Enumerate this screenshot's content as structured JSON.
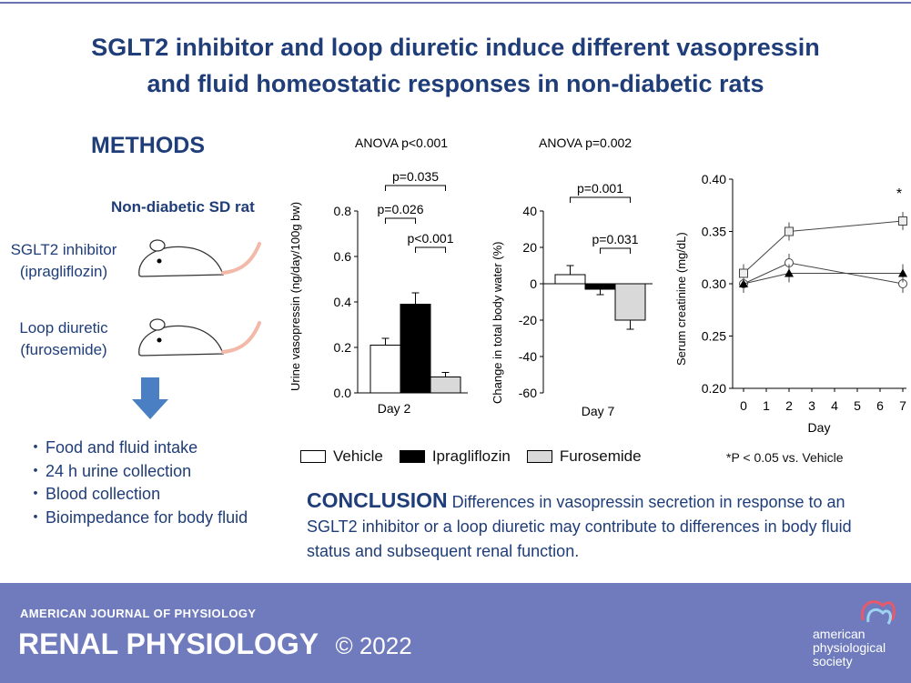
{
  "title_line1": "SGLT2 inhibitor and loop diuretic induce different vasopressin",
  "title_line2": "and fluid homeostatic responses in non-diabetic rats",
  "methods": {
    "heading": "METHODS",
    "rat_label": "Non-diabetic SD rat",
    "drug1_line1": "SGLT2 inhibitor",
    "drug1_line2": "(ipragliflozin)",
    "drug2_line1": "Loop diuretic",
    "drug2_line2": "(furosemide)",
    "bullets": [
      "Food and fluid intake",
      "24 h urine collection",
      "Blood collection",
      "Bioimpedance for body fluid"
    ]
  },
  "legend": {
    "vehicle": "Vehicle",
    "ipragliflozin": "Ipragliflozin",
    "furosemide": "Furosemide",
    "note": "*P < 0.05 vs. Vehicle"
  },
  "conclusion": {
    "heading": "CONCLUSION",
    "text": "Differences in vasopressin secretion in response to an SGLT2 inhibitor or a loop diuretic may contribute to differences in body fluid status and subsequent renal function."
  },
  "footer": {
    "journal": "AMERICAN JOURNAL OF PHYSIOLOGY",
    "name": "RENAL PHYSIOLOGY",
    "copyright": "© 2022",
    "society_line1": "american",
    "society_line2": "physiological",
    "society_line3": "society"
  },
  "colors": {
    "navy": "#1f3d78",
    "footer": "#6f7bbd",
    "gray_bar": "#d9d9d9"
  },
  "chart_data": [
    {
      "type": "bar",
      "anova": "ANOVA  p<0.001",
      "ylabel": "Urine vasopressin (ng/day/100g bw)",
      "xlabel": "Day 2",
      "ylim": [
        0,
        0.8
      ],
      "yticks": [
        "0.0",
        "0.2",
        "0.4",
        "0.6",
        "0.8"
      ],
      "series": [
        {
          "name": "Vehicle",
          "value": 0.21,
          "error": 0.03
        },
        {
          "name": "Ipragliflozin",
          "value": 0.39,
          "error": 0.05
        },
        {
          "name": "Furosemide",
          "value": 0.07,
          "error": 0.02
        }
      ],
      "brackets": [
        {
          "label": "p=0.035",
          "from": 0,
          "to": 2
        },
        {
          "label": "p=0.026",
          "from": 0,
          "to": 1
        },
        {
          "label": "p<0.001",
          "from": 1,
          "to": 2
        }
      ]
    },
    {
      "type": "bar",
      "anova": "ANOVA  p=0.002",
      "ylabel": "Change in total body water (%)",
      "xlabel": "Day 7",
      "ylim": [
        -60,
        40
      ],
      "yticks": [
        "-60",
        "-40",
        "-20",
        "0",
        "20",
        "40"
      ],
      "series": [
        {
          "name": "Vehicle",
          "value": 5,
          "error": 5
        },
        {
          "name": "Ipragliflozin",
          "value": -3,
          "error": 3
        },
        {
          "name": "Furosemide",
          "value": -20,
          "error": 5
        }
      ],
      "brackets": [
        {
          "label": "p=0.001",
          "from": 0,
          "to": 2
        },
        {
          "label": "p=0.031",
          "from": 1,
          "to": 2
        }
      ]
    },
    {
      "type": "line",
      "ylabel": "Serum creatinine (mg/dL)",
      "xlabel": "Day",
      "x": [
        0,
        2,
        7
      ],
      "xticks": [
        "0",
        "1",
        "2",
        "3",
        "4",
        "5",
        "6",
        "7"
      ],
      "ylim": [
        0.2,
        0.4
      ],
      "yticks": [
        "0.20",
        "0.25",
        "0.30",
        "0.35",
        "0.40"
      ],
      "series": [
        {
          "name": "Vehicle",
          "marker": "circle-open",
          "values": [
            0.3,
            0.32,
            0.3
          ]
        },
        {
          "name": "Ipragliflozin",
          "marker": "triangle-filled",
          "values": [
            0.3,
            0.31,
            0.31
          ]
        },
        {
          "name": "Furosemide",
          "marker": "square-open",
          "values": [
            0.31,
            0.35,
            0.36
          ]
        }
      ],
      "annotation": "*"
    }
  ]
}
